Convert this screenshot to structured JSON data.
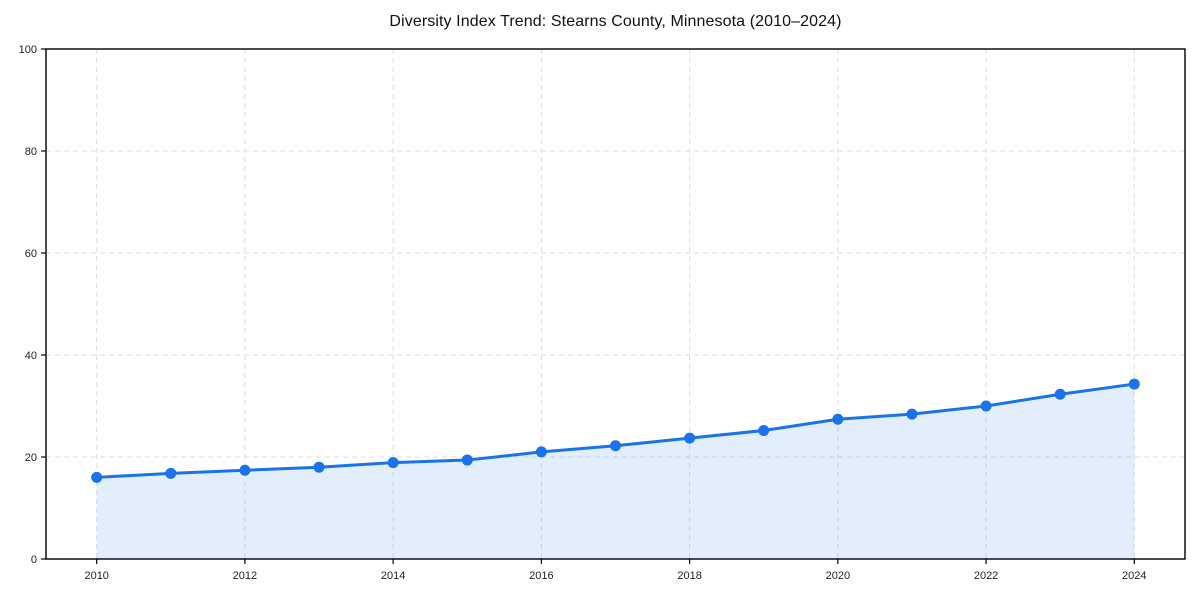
{
  "chart_data": {
    "type": "area",
    "title": "Diversity Index Trend: Stearns County, Minnesota (2010–2024)",
    "xlabel": "",
    "ylabel": "",
    "x": [
      2010,
      2011,
      2012,
      2013,
      2014,
      2015,
      2016,
      2017,
      2018,
      2019,
      2020,
      2021,
      2022,
      2023,
      2024
    ],
    "series": [
      {
        "name": "Diversity Index",
        "values": [
          16.0,
          16.8,
          17.4,
          18.0,
          18.9,
          19.4,
          21.0,
          22.2,
          23.7,
          25.2,
          27.4,
          28.4,
          30.0,
          32.3,
          34.3
        ]
      }
    ],
    "ylim": [
      0,
      100
    ],
    "xlim_years": [
      2010,
      2024
    ],
    "yticks": [
      0,
      20,
      40,
      60,
      80,
      100
    ],
    "xticks": [
      2010,
      2012,
      2014,
      2016,
      2018,
      2020,
      2022,
      2024
    ],
    "grid": true,
    "legend_position": "none",
    "colors": {
      "line": "#1a73e8",
      "marker": "#1a73e8",
      "area_fill": "#1a73e8",
      "area_fill_opacity": 0.12,
      "grid": "#dcdcdc",
      "spine": "#000000",
      "tick_label": "#1f1f1f",
      "title": "#111111",
      "background": "#ffffff"
    }
  }
}
